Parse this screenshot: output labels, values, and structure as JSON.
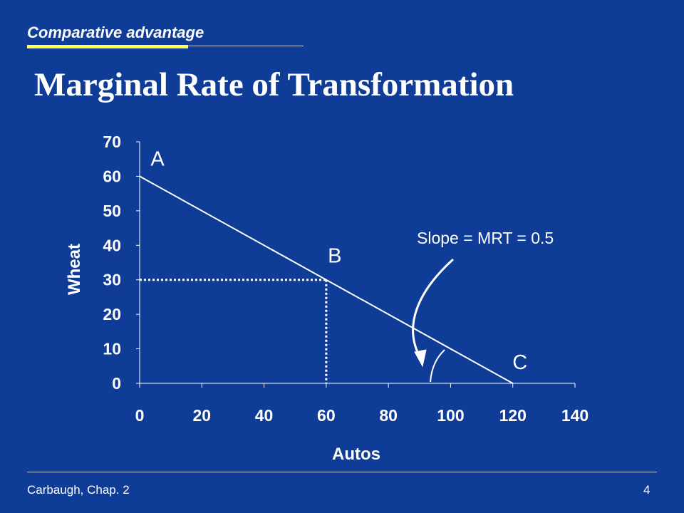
{
  "header": {
    "topic": "Comparative advantage",
    "title": "Marginal Rate of Transformation",
    "accent_color": "#ffff4f"
  },
  "footer": {
    "source": "Carbaugh, Chap. 2",
    "page_number": "4"
  },
  "theme": {
    "background": "#0f3c96",
    "foreground": "#ffffff"
  },
  "chart_data": {
    "type": "line",
    "title": "",
    "xlabel": "Autos",
    "ylabel": "Wheat",
    "xlim": [
      0,
      140
    ],
    "ylim": [
      0,
      70
    ],
    "x_ticks": [
      0,
      20,
      40,
      60,
      80,
      100,
      120,
      140
    ],
    "y_ticks": [
      0,
      10,
      20,
      30,
      40,
      50,
      60,
      70
    ],
    "grid": false,
    "series": [
      {
        "x": [
          0,
          120
        ],
        "y": [
          60,
          0
        ]
      }
    ],
    "points": [
      {
        "label": "A",
        "x": 0,
        "y": 60
      },
      {
        "label": "B",
        "x": 60,
        "y": 30
      },
      {
        "label": "C",
        "x": 120,
        "y": 0
      }
    ],
    "reference_lines": [
      {
        "from": [
          0,
          30
        ],
        "to": [
          60,
          30
        ],
        "style": "dotted"
      },
      {
        "from": [
          60,
          30
        ],
        "to": [
          60,
          0
        ],
        "style": "dotted"
      }
    ],
    "annotation": {
      "text": "Slope = MRT = 0.5"
    }
  }
}
